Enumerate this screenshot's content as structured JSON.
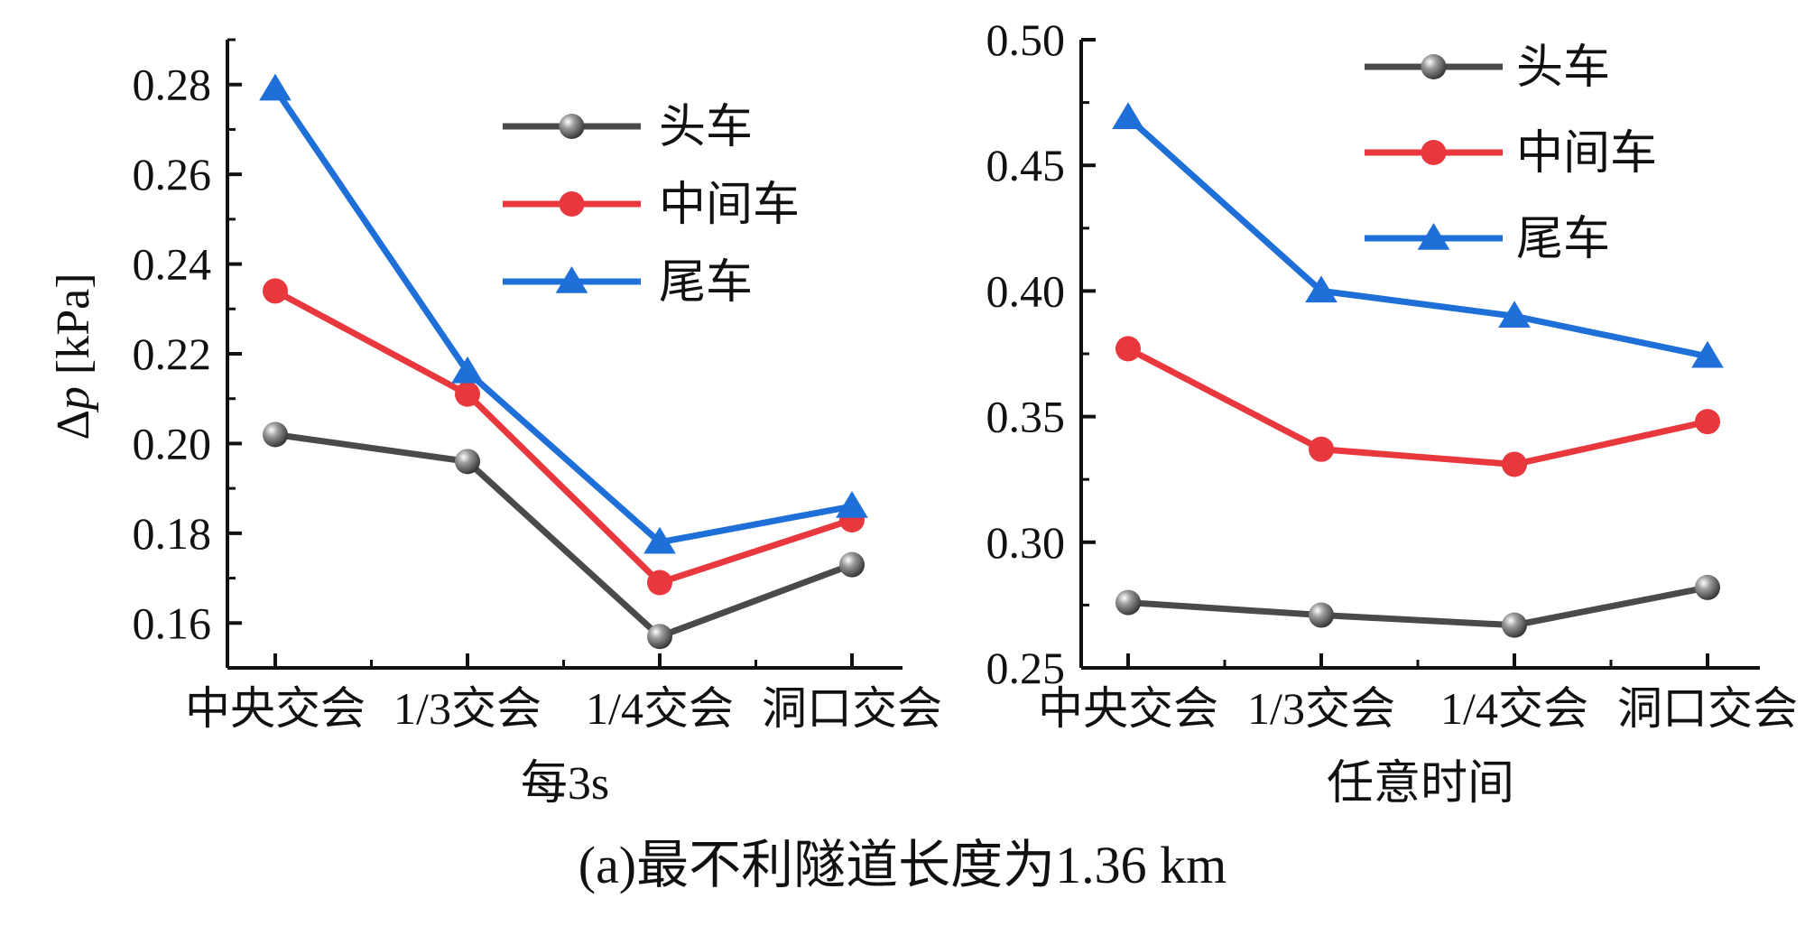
{
  "caption": "(a)最不利隧道长度为1.36 km",
  "colors": {
    "head": "#4a4a4a",
    "middle": "#e8383d",
    "tail": "#1f6fd8",
    "axis": "#111111"
  },
  "ylabel_prefix": "Δ",
  "ylabel_var": "p",
  "ylabel_unit": " [kPa]",
  "chart_data": [
    {
      "type": "line",
      "title": "",
      "xlabel": "每3s",
      "ylabel": "Δp [kPa]",
      "categories": [
        "中央交会",
        "1/3交会",
        "1/4交会",
        "洞口交会"
      ],
      "ylim": [
        0.15,
        0.29
      ],
      "yticks": [
        0.16,
        0.18,
        0.2,
        0.22,
        0.24,
        0.26,
        0.28
      ],
      "ytick_labels": [
        "0.16",
        "0.18",
        "0.20",
        "0.22",
        "0.24",
        "0.26",
        "0.28"
      ],
      "legend_position": "upper-right",
      "series": [
        {
          "name": "头车",
          "marker": "circle",
          "values": [
            0.202,
            0.196,
            0.157,
            0.173
          ]
        },
        {
          "name": "中间车",
          "marker": "circle",
          "values": [
            0.234,
            0.211,
            0.169,
            0.183
          ]
        },
        {
          "name": "尾车",
          "marker": "triangle",
          "values": [
            0.279,
            0.216,
            0.178,
            0.186
          ]
        }
      ]
    },
    {
      "type": "line",
      "title": "",
      "xlabel": "任意时间",
      "ylabel": "",
      "categories": [
        "中央交会",
        "1/3交会",
        "1/4交会",
        "洞口交会"
      ],
      "ylim": [
        0.25,
        0.5
      ],
      "yticks": [
        0.25,
        0.3,
        0.35,
        0.4,
        0.45,
        0.5
      ],
      "ytick_labels": [
        "0.25",
        "0.30",
        "0.35",
        "0.40",
        "0.45",
        "0.50"
      ],
      "legend_position": "upper-right",
      "series": [
        {
          "name": "头车",
          "marker": "circle",
          "values": [
            0.276,
            0.271,
            0.267,
            0.282
          ]
        },
        {
          "name": "中间车",
          "marker": "circle",
          "values": [
            0.377,
            0.337,
            0.331,
            0.348
          ]
        },
        {
          "name": "尾车",
          "marker": "triangle",
          "values": [
            0.469,
            0.4,
            0.39,
            0.374
          ]
        }
      ]
    }
  ]
}
